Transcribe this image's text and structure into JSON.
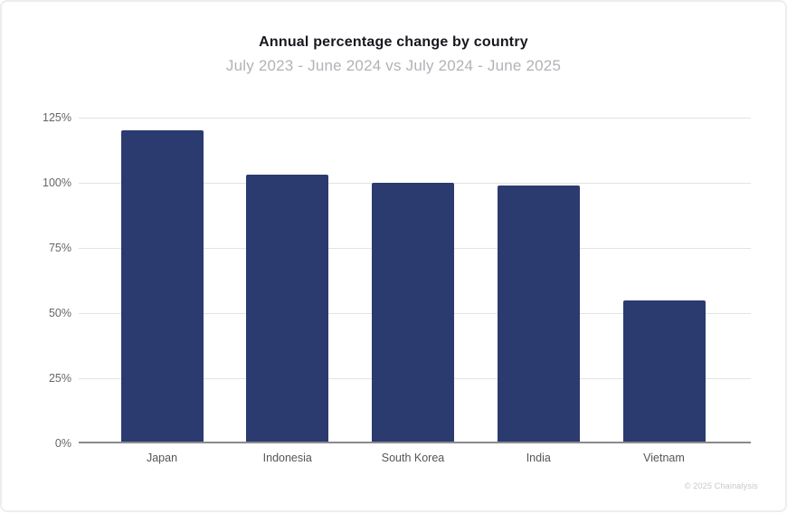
{
  "chart": {
    "title": "Annual percentage change by country",
    "subtitle": "July 2023 - June 2024 vs July 2024 - June 2025"
  },
  "chart_data": {
    "type": "bar",
    "categories": [
      "Japan",
      "Indonesia",
      "South Korea",
      "India",
      "Vietnam"
    ],
    "values": [
      120,
      103,
      100,
      99,
      55
    ],
    "value_unit": "%",
    "title": "Annual percentage change by country",
    "subtitle": "July 2023 - June 2024 vs July 2024 - June 2025",
    "xlabel": "",
    "ylabel": "",
    "ylim": [
      0,
      125
    ],
    "yticks": [
      0,
      25,
      50,
      75,
      100,
      125
    ],
    "ytick_labels": [
      "0%",
      "25%",
      "50%",
      "75%",
      "100%",
      "125%"
    ],
    "grid": true,
    "legend": null,
    "bar_color": "#2b3b70"
  },
  "footer": {
    "copyright": "© 2025 Chainalysis"
  }
}
